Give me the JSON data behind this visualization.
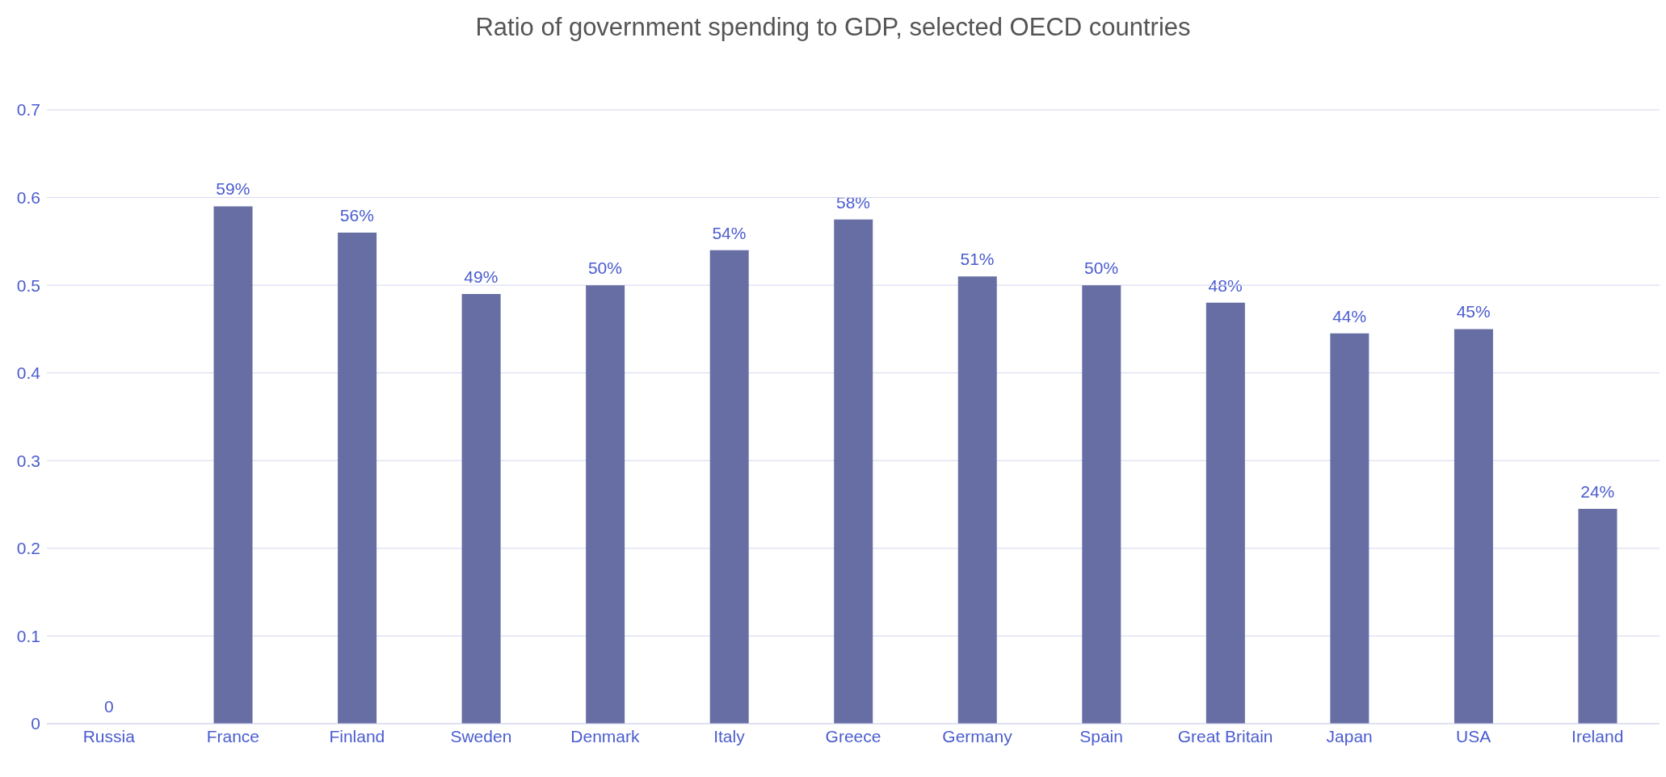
{
  "chart_data": {
    "type": "bar",
    "title": "Ratio of government spending to GDP, selected OECD countries",
    "categories": [
      "Russia",
      "France",
      "Finland",
      "Sweden",
      "Denmark",
      "Italy",
      "Greece",
      "Germany",
      "Spain",
      "Great Britain",
      "Japan",
      "USA",
      "Ireland"
    ],
    "values": [
      0,
      0.59,
      0.56,
      0.49,
      0.5,
      0.54,
      0.575,
      0.51,
      0.5,
      0.48,
      0.445,
      0.45,
      0.245
    ],
    "value_labels": [
      "0",
      "59%",
      "56%",
      "49%",
      "50%",
      "54%",
      "58%",
      "51%",
      "50%",
      "48%",
      "44%",
      "45%",
      "24%"
    ],
    "color": "#666ea3",
    "ylim": [
      0,
      0.7
    ],
    "yticks": [
      0,
      0.1,
      0.2,
      0.3,
      0.4,
      0.5,
      0.6,
      0.7
    ],
    "grid": "y",
    "legend": false
  }
}
